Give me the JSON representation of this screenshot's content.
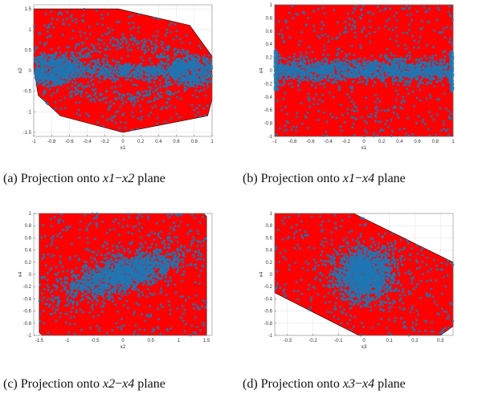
{
  "colors": {
    "region": "#ff0000",
    "points": "#1f77b4",
    "axis": "#333333",
    "grid": "#e0e0e0"
  },
  "captions": [
    {
      "label": "(a)",
      "text": "Projection onto",
      "v1": "x1",
      "v2": "x2",
      "suffix": "plane"
    },
    {
      "label": "(b)",
      "text": "Projection onto",
      "v1": "x1",
      "v2": "x4",
      "suffix": "plane"
    },
    {
      "label": "(c)",
      "text": "Projection onto",
      "v1": "x2",
      "v2": "x4",
      "suffix": "plane"
    },
    {
      "label": "(d)",
      "text": "Projection onto",
      "v1": "x3",
      "v2": "x4",
      "suffix": "plane"
    }
  ],
  "chart_data": [
    {
      "type": "scatter",
      "xlabel": "x1",
      "ylabel": "x2",
      "xlim": [
        -1,
        1
      ],
      "ylim": [
        -1.6,
        1.6
      ],
      "xticks": [
        -1,
        -0.8,
        -0.6,
        -0.4,
        -0.2,
        0,
        0.2,
        0.4,
        0.6,
        0.8,
        1
      ],
      "yticks": [
        -1.5,
        -1,
        -0.5,
        0,
        0.5,
        1,
        1.5
      ],
      "grid": true,
      "region_polygon": [
        [
          -1,
          1.5
        ],
        [
          -0.05,
          1.5
        ],
        [
          0.75,
          1.1
        ],
        [
          1,
          0.35
        ],
        [
          1,
          -0.7
        ],
        [
          0.95,
          -1.1
        ],
        [
          0,
          -1.5
        ],
        [
          -0.7,
          -1.1
        ],
        [
          -0.95,
          -0.6
        ],
        [
          -1,
          0.05
        ]
      ],
      "point_pattern": "two-lobed spiral along x2=0, dense near x1=±1"
    },
    {
      "type": "scatter",
      "xlabel": "x1",
      "ylabel": "x4",
      "xlim": [
        -1,
        1
      ],
      "ylim": [
        -1,
        1
      ],
      "xticks": [
        -1,
        -0.8,
        -0.6,
        -0.4,
        -0.2,
        0,
        0.2,
        0.4,
        0.6,
        0.8,
        1
      ],
      "yticks": [
        -1,
        -0.8,
        -0.6,
        -0.4,
        -0.2,
        0,
        0.2,
        0.4,
        0.6,
        0.8,
        1
      ],
      "grid": true,
      "region_polygon": [
        [
          -1,
          1
        ],
        [
          1,
          1
        ],
        [
          1,
          -1
        ],
        [
          -1,
          -1
        ]
      ],
      "point_pattern": "horizontal band around x4=0"
    },
    {
      "type": "scatter",
      "xlabel": "x2",
      "ylabel": "x4",
      "xlim": [
        -1.6,
        1.6
      ],
      "ylim": [
        -1,
        1
      ],
      "xticks": [
        -1.5,
        -1,
        -0.5,
        0,
        0.5,
        1,
        1.5
      ],
      "yticks": [
        -1,
        -0.8,
        -0.6,
        -0.4,
        -0.2,
        0,
        0.2,
        0.4,
        0.6,
        0.8,
        1
      ],
      "grid": true,
      "region_polygon": [
        [
          -1.5,
          1
        ],
        [
          1.45,
          1
        ],
        [
          1.5,
          0.95
        ],
        [
          1.5,
          -1
        ],
        [
          -1.45,
          -1
        ],
        [
          -1.5,
          -0.95
        ]
      ],
      "point_pattern": "diagonal band, positive correlation"
    },
    {
      "type": "scatter",
      "xlabel": "x3",
      "ylabel": "x4",
      "xlim": [
        -0.35,
        0.35
      ],
      "ylim": [
        -1,
        1
      ],
      "xticks": [
        -0.3,
        -0.2,
        -0.1,
        0,
        0.1,
        0.2,
        0.3
      ],
      "yticks": [
        -1,
        -0.8,
        -0.6,
        -0.4,
        -0.2,
        0,
        0.2,
        0.4,
        0.6,
        0.8,
        1
      ],
      "grid": true,
      "region_polygon": [
        [
          -0.35,
          1
        ],
        [
          -0.04,
          1
        ],
        [
          0.35,
          0.2
        ],
        [
          0.35,
          -0.85
        ],
        [
          0.3,
          -1
        ],
        [
          -0.02,
          -1
        ],
        [
          -0.35,
          -0.3
        ],
        [
          -0.35,
          0.95
        ]
      ],
      "point_pattern": "dense cluster in center of slanted band"
    }
  ]
}
